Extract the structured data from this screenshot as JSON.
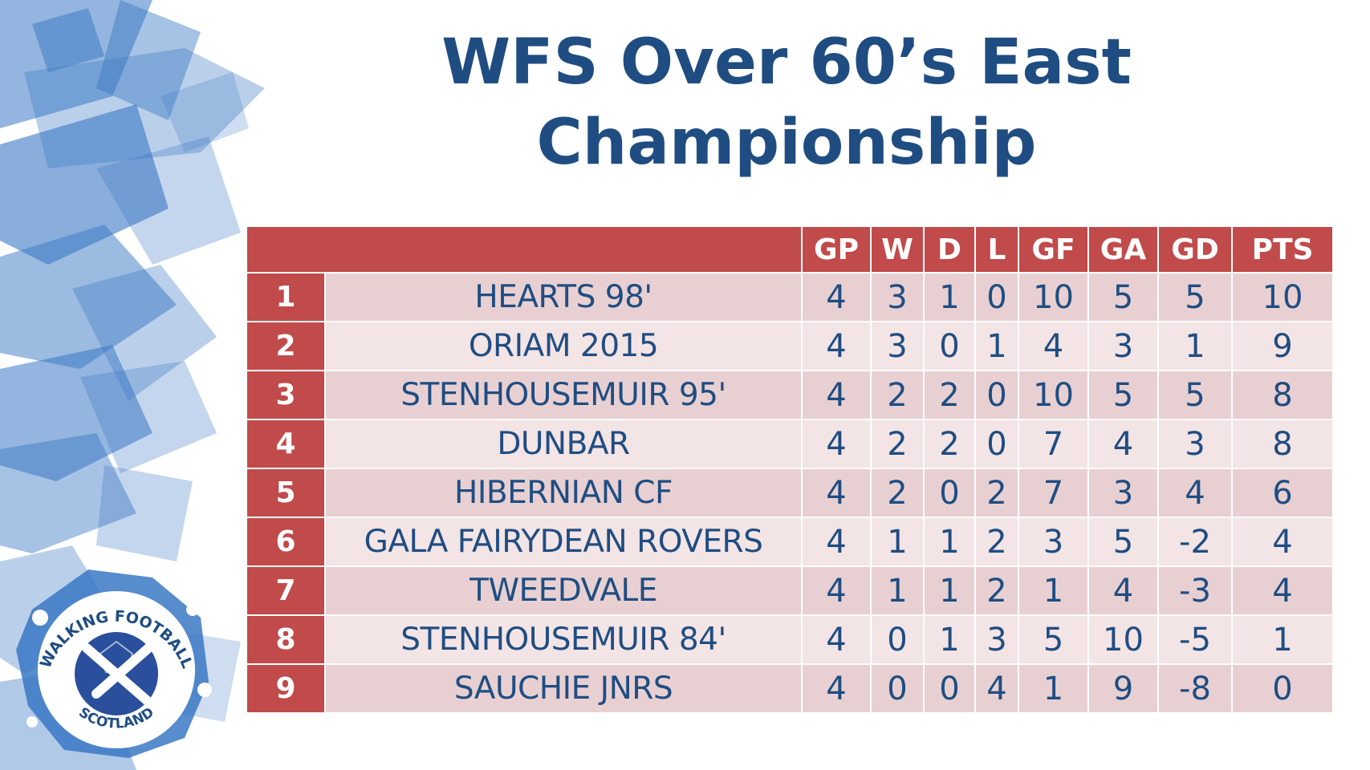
{
  "title": {
    "line1": "WFS Over 60’s East",
    "line2": "Championship"
  },
  "table": {
    "headers": [
      "",
      "GP",
      "W",
      "D",
      "L",
      "GF",
      "GA",
      "GD",
      "PTS"
    ],
    "rows": [
      {
        "pos": "1",
        "team": "HEARTS 98'",
        "gp": "4",
        "w": "3",
        "d": "1",
        "l": "0",
        "gf": "10",
        "ga": "5",
        "gd": "5",
        "pts": "10"
      },
      {
        "pos": "2",
        "team": "ORIAM 2015",
        "gp": "4",
        "w": "3",
        "d": "0",
        "l": "1",
        "gf": "4",
        "ga": "3",
        "gd": "1",
        "pts": "9"
      },
      {
        "pos": "3",
        "team": "STENHOUSEMUIR 95'",
        "gp": "4",
        "w": "2",
        "d": "2",
        "l": "0",
        "gf": "10",
        "ga": "5",
        "gd": "5",
        "pts": "8"
      },
      {
        "pos": "4",
        "team": "DUNBAR",
        "gp": "4",
        "w": "2",
        "d": "2",
        "l": "0",
        "gf": "7",
        "ga": "4",
        "gd": "3",
        "pts": "8"
      },
      {
        "pos": "5",
        "team": "HIBERNIAN CF",
        "gp": "4",
        "w": "2",
        "d": "0",
        "l": "2",
        "gf": "7",
        "ga": "3",
        "gd": "4",
        "pts": "6"
      },
      {
        "pos": "6",
        "team": "GALA FAIRYDEAN ROVERS",
        "gp": "4",
        "w": "1",
        "d": "1",
        "l": "2",
        "gf": "3",
        "ga": "5",
        "gd": "-2",
        "pts": "4"
      },
      {
        "pos": "7",
        "team": "TWEEDVALE",
        "gp": "4",
        "w": "1",
        "d": "1",
        "l": "2",
        "gf": "1",
        "ga": "4",
        "gd": "-3",
        "pts": "4"
      },
      {
        "pos": "8",
        "team": "STENHOUSEMUIR 84'",
        "gp": "4",
        "w": "0",
        "d": "1",
        "l": "3",
        "gf": "5",
        "ga": "10",
        "gd": "-5",
        "pts": "1"
      },
      {
        "pos": "9",
        "team": "SAUCHIE JNRS",
        "gp": "4",
        "w": "0",
        "d": "0",
        "l": "4",
        "gf": "1",
        "ga": "9",
        "gd": "-8",
        "pts": "0"
      }
    ]
  },
  "logo": {
    "text_top": "WALKING FOOTBALL",
    "text_bottom": "SCOTLAND",
    "icon": "football-saltire-icon"
  },
  "colors": {
    "header_red": "#c14a4a",
    "title_blue": "#1f4d82",
    "row_odd": "#e8d0d2",
    "row_even": "#f3e4e5",
    "deco_blue": "#3a78c4"
  }
}
